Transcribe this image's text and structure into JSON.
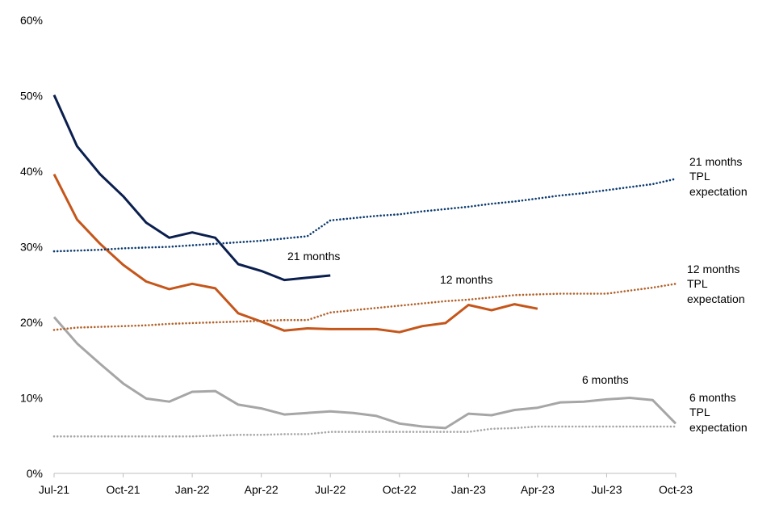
{
  "chart_data": {
    "type": "line",
    "title": "",
    "xlabel": "",
    "ylabel": "",
    "ylim": [
      0,
      60
    ],
    "y_ticks": [
      "0%",
      "10%",
      "20%",
      "30%",
      "40%",
      "50%",
      "60%"
    ],
    "x_ticks": [
      "Jul-21",
      "Oct-21",
      "Jan-22",
      "Apr-22",
      "Jul-22",
      "Oct-22",
      "Jan-23",
      "Apr-23",
      "Jul-23",
      "Oct-23"
    ],
    "x": [
      "Jul-21",
      "Aug-21",
      "Sep-21",
      "Oct-21",
      "Nov-21",
      "Dec-21",
      "Jan-22",
      "Feb-22",
      "Mar-22",
      "Apr-22",
      "May-22",
      "Jun-22",
      "Jul-22",
      "Aug-22",
      "Sep-22",
      "Oct-22",
      "Nov-22",
      "Dec-22",
      "Jan-23",
      "Feb-23",
      "Mar-23",
      "Apr-23",
      "May-23",
      "Jun-23",
      "Jul-23",
      "Aug-23",
      "Sep-23",
      "Oct-23"
    ],
    "grid": false,
    "legend": "none",
    "series": [
      {
        "name": "21 months",
        "style": "solid",
        "color": "#0b1f4e",
        "values": [
          50.1,
          43.3,
          39.6,
          36.7,
          33.2,
          31.2,
          31.9,
          31.2,
          27.7,
          26.8,
          25.6,
          25.9,
          26.2,
          null,
          null,
          null,
          null,
          null,
          null,
          null,
          null,
          null,
          null,
          null,
          null,
          null,
          null,
          null
        ]
      },
      {
        "name": "12 months",
        "style": "solid",
        "color": "#c5561b",
        "values": [
          39.6,
          33.6,
          30.4,
          27.6,
          25.4,
          24.4,
          25.1,
          24.5,
          21.2,
          20.1,
          18.9,
          19.2,
          19.1,
          19.1,
          19.1,
          18.7,
          19.5,
          19.9,
          22.3,
          21.6,
          22.4,
          21.8,
          null,
          null,
          null,
          null,
          null,
          null
        ]
      },
      {
        "name": "6 months",
        "style": "solid",
        "color": "#a6a6a6",
        "values": [
          20.7,
          17.2,
          14.5,
          11.9,
          9.9,
          9.5,
          10.8,
          10.9,
          9.1,
          8.6,
          7.8,
          8.0,
          8.2,
          8.0,
          7.6,
          6.6,
          6.2,
          6.0,
          7.9,
          7.7,
          8.4,
          8.7,
          9.4,
          9.5,
          9.8,
          10.0,
          9.7,
          6.6
        ]
      },
      {
        "name": "21 months TPL expectation",
        "style": "dotted",
        "color": "#0b3a6e",
        "values": [
          29.4,
          29.5,
          29.6,
          29.8,
          29.9,
          30.0,
          30.2,
          30.4,
          30.6,
          30.8,
          31.1,
          31.4,
          33.5,
          33.8,
          34.1,
          34.3,
          34.7,
          35.0,
          35.3,
          35.7,
          36.0,
          36.4,
          36.8,
          37.1,
          37.5,
          37.9,
          38.3,
          39.0
        ]
      },
      {
        "name": "12 months TPL expectation",
        "style": "dotted",
        "color": "#b2612a",
        "values": [
          19.0,
          19.3,
          19.4,
          19.5,
          19.6,
          19.8,
          19.9,
          20.0,
          20.1,
          20.2,
          20.3,
          20.3,
          21.3,
          21.6,
          21.9,
          22.2,
          22.5,
          22.8,
          23.0,
          23.3,
          23.6,
          23.7,
          23.8,
          23.8,
          23.8,
          24.2,
          24.6,
          25.1
        ]
      },
      {
        "name": "6 months TPL expectation",
        "style": "dotted",
        "color": "#a6a6a6",
        "values": [
          4.9,
          4.9,
          4.9,
          4.9,
          4.9,
          4.9,
          4.9,
          5.0,
          5.1,
          5.1,
          5.2,
          5.2,
          5.5,
          5.5,
          5.5,
          5.5,
          5.5,
          5.5,
          5.5,
          5.9,
          6.0,
          6.2,
          6.2,
          6.2,
          6.2,
          6.2,
          6.2,
          6.2
        ]
      }
    ],
    "annotations": {
      "s21": "21 months",
      "s12": "12 months",
      "s6": "6 months",
      "tpl21": [
        "21 months",
        "TPL",
        "expectation"
      ],
      "tpl12": [
        "12 months",
        "TPL",
        "expectation"
      ],
      "tpl6": [
        "6 months",
        "TPL",
        "expectation"
      ]
    }
  }
}
